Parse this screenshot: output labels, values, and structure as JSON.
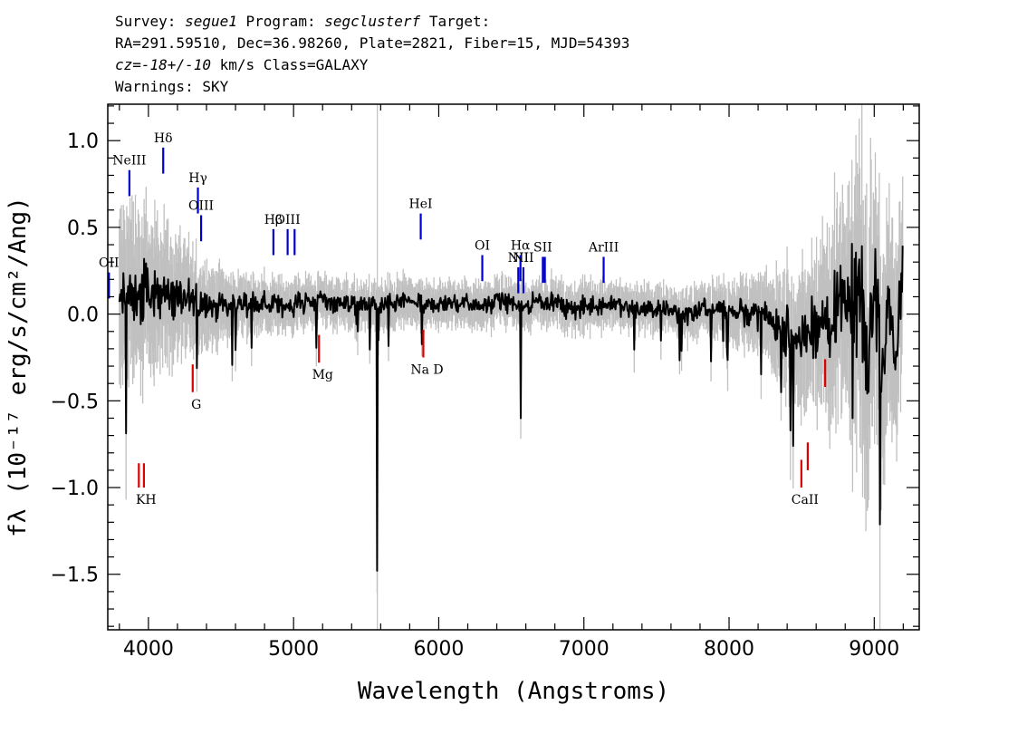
{
  "header": {
    "survey_label": "Survey:",
    "survey": "segue1",
    "program_label": "Program:",
    "program": "segclusterf",
    "target_label": "Target:",
    "line2": "RA=291.59510, Dec=36.98260, Plate=2821, Fiber=15, MJD=54393",
    "cz_label": "cz=",
    "cz_value": "-18+/-10",
    "cz_unit": "km/s",
    "class": "Class=GALAXY",
    "warnings": "Warnings: SKY"
  },
  "chart_data": {
    "type": "line",
    "title": "",
    "xlabel": "Wavelength (Angstroms)",
    "ylabel": "fλ (10⁻¹⁷ erg/s/cm²/Ang)",
    "xlim": [
      3720,
      9310
    ],
    "ylim": [
      -1.82,
      1.21
    ],
    "x_ticks": [
      4000,
      5000,
      6000,
      7000,
      8000,
      9000
    ],
    "y_ticks": [
      -1.5,
      -1.0,
      -0.5,
      0.0,
      0.5,
      1.0
    ],
    "y_tick_labels": [
      "−1.5",
      "−1.0",
      "−0.5",
      "0.0",
      "0.5",
      "1.0"
    ],
    "grid": false,
    "colors": {
      "flux": "#000000",
      "error": "#c0c0c0",
      "emission": "#0000cc",
      "absorption": "#dd0000"
    },
    "series": [
      {
        "style": "black",
        "x": [
          3800,
          3850,
          3900,
          3950,
          4000,
          4050,
          4100,
          4150,
          4200,
          4300,
          4400,
          4500,
          4600,
          4700,
          4800,
          4900,
          5000,
          5100,
          5200,
          5300,
          5400,
          5500,
          5577,
          5600,
          5700,
          5800,
          5893,
          6000,
          6100,
          6200,
          6300,
          6400,
          6500,
          6563,
          6600,
          6700,
          6800,
          6900,
          7000,
          7100,
          7200,
          7300,
          7400,
          7500,
          7600,
          7700,
          7800,
          7900,
          8000,
          8100,
          8200,
          8300,
          8400,
          8500,
          8600,
          8700,
          8800,
          8850,
          8900,
          8950,
          9000,
          9050,
          9100,
          9150,
          9200
        ],
        "y": [
          0.05,
          0.12,
          0.08,
          0.1,
          0.12,
          0.1,
          0.15,
          0.1,
          0.12,
          0.08,
          0.06,
          0.06,
          0.05,
          0.07,
          0.06,
          0.05,
          0.05,
          0.07,
          0.08,
          0.07,
          0.06,
          0.05,
          -1.48,
          0.05,
          0.06,
          0.07,
          0.04,
          0.06,
          0.06,
          0.07,
          0.05,
          0.08,
          0.06,
          -0.6,
          0.05,
          0.08,
          0.07,
          0.02,
          0.04,
          0.05,
          0.06,
          0.04,
          0.02,
          0.03,
          0.02,
          0.0,
          0.01,
          0.03,
          0.05,
          0.01,
          0.0,
          -0.05,
          -0.1,
          -0.15,
          -0.05,
          -0.1,
          0.2,
          -0.6,
          0.1,
          -0.4,
          0.2,
          -0.3,
          0.0,
          -0.2,
          0.35
        ]
      },
      {
        "style": "gray",
        "x": [
          3800,
          3900,
          4000,
          4100,
          4200,
          4300,
          4400,
          4600,
          4800,
          5000,
          5200,
          5400,
          5600,
          5800,
          6000,
          6200,
          6400,
          6600,
          6800,
          7000,
          7200,
          7400,
          7600,
          7800,
          8000,
          8200,
          8400,
          8600,
          8800,
          8900,
          9000,
          9100,
          9200
        ],
        "y": [
          0.5,
          0.45,
          0.4,
          0.38,
          0.32,
          0.25,
          0.22,
          0.16,
          0.14,
          0.14,
          0.13,
          0.12,
          0.12,
          0.13,
          0.12,
          0.12,
          0.12,
          0.12,
          0.12,
          0.13,
          0.12,
          0.12,
          0.12,
          0.14,
          0.16,
          0.2,
          0.3,
          0.4,
          0.6,
          0.8,
          0.8,
          0.6,
          0.5
        ]
      }
    ],
    "emission_lines": [
      {
        "label": "OII",
        "wave": 3728,
        "y0": 0.09,
        "y1": 0.24
      },
      {
        "label": "NeIII",
        "wave": 3869,
        "y0": 0.68,
        "y1": 0.83
      },
      {
        "label": "Hδ",
        "wave": 4102,
        "y0": 0.81,
        "y1": 0.96
      },
      {
        "label": "Hγ",
        "wave": 4341,
        "y0": 0.58,
        "y1": 0.73
      },
      {
        "label": "OIII",
        "wave": 4363,
        "y0": 0.42,
        "y1": 0.57
      },
      {
        "label": "Hβ",
        "wave": 4861,
        "y0": 0.34,
        "y1": 0.49
      },
      {
        "label": "OIII",
        "wave": 4959,
        "y0": 0.34,
        "y1": 0.49
      },
      {
        "label": "",
        "wave": 5007,
        "y0": 0.34,
        "y1": 0.49
      },
      {
        "label": "HeI",
        "wave": 5876,
        "y0": 0.43,
        "y1": 0.58
      },
      {
        "label": "OI",
        "wave": 6300,
        "y0": 0.19,
        "y1": 0.34
      },
      {
        "label": "NII",
        "wave": 6548,
        "y0": 0.12,
        "y1": 0.27
      },
      {
        "label": "Hα",
        "wave": 6563,
        "y0": 0.19,
        "y1": 0.34
      },
      {
        "label": "NII",
        "wave": 6583,
        "y0": 0.12,
        "y1": 0.27
      },
      {
        "label": "SII",
        "wave": 6717,
        "y0": 0.18,
        "y1": 0.33
      },
      {
        "label": "",
        "wave": 6731,
        "y0": 0.18,
        "y1": 0.33
      },
      {
        "label": "ArIII",
        "wave": 7136,
        "y0": 0.18,
        "y1": 0.33
      }
    ],
    "absorption_lines": [
      {
        "label": "KH",
        "wave": 3934,
        "y0": -1.0,
        "y1": -0.86
      },
      {
        "label": "",
        "wave": 3969,
        "y0": -1.0,
        "y1": -0.86
      },
      {
        "label": "G",
        "wave": 4305,
        "y0": -0.45,
        "y1": -0.29
      },
      {
        "label": "Mg",
        "wave": 5175,
        "y0": -0.28,
        "y1": -0.12
      },
      {
        "label": "Na D",
        "wave": 5894,
        "y0": -0.25,
        "y1": -0.09
      },
      {
        "label": "CaII",
        "wave": 8498,
        "y0": -1.0,
        "y1": -0.84
      },
      {
        "label": "",
        "wave": 8542,
        "y0": -0.9,
        "y1": -0.74
      },
      {
        "label": "",
        "wave": 8662,
        "y0": -0.42,
        "y1": -0.26
      }
    ]
  }
}
